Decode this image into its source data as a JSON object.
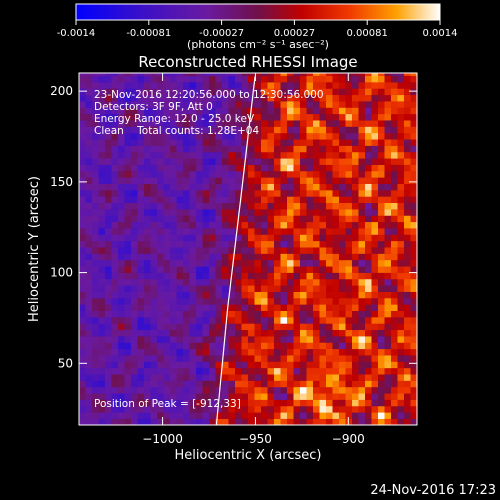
{
  "colorbar": {
    "ticks": [
      "-0.0014",
      "-0.00081",
      "-0.00027",
      "0.00027",
      "0.00081",
      "0.0014"
    ],
    "units": "(photons cm⁻² s⁻¹ asec⁻²)"
  },
  "chart_data": {
    "type": "heatmap",
    "title": "Reconstructed RHESSI Image",
    "xlabel": "Heliocentric X (arcsec)",
    "ylabel": "Heliocentric Y (arcsec)",
    "xlim": [
      -1045,
      -863
    ],
    "ylim": [
      16,
      210
    ],
    "x_ticks": [
      {
        "value": -1000,
        "label": "−1000"
      },
      {
        "value": -950,
        "label": "−950"
      },
      {
        "value": -900,
        "label": "−900"
      }
    ],
    "y_ticks": [
      {
        "value": 50,
        "label": "50"
      },
      {
        "value": 100,
        "label": "100"
      },
      {
        "value": 150,
        "label": "150"
      },
      {
        "value": 200,
        "label": "200"
      }
    ],
    "value_range": [
      -0.0014,
      0.0014
    ],
    "annotations": [
      "23-Nov-2016 12:20:56.000 to 12:30:56.000",
      "Detectors: 3F 9F, Att 0",
      "Energy Range: 12.0 - 25.0 keV",
      "Clean    Total counts: 1.28E+04"
    ],
    "peak_label": "Position of Peak = [-912,33]",
    "limb": [
      [
        -971,
        16
      ],
      [
        -965,
        80
      ],
      [
        -958,
        140
      ],
      [
        -950,
        210
      ]
    ]
  },
  "footer": {
    "timestamp": "24-Nov-2016 17:23"
  },
  "colors": {
    "background": "#000000",
    "text": "#ffffff",
    "limb": "#ffffff"
  }
}
